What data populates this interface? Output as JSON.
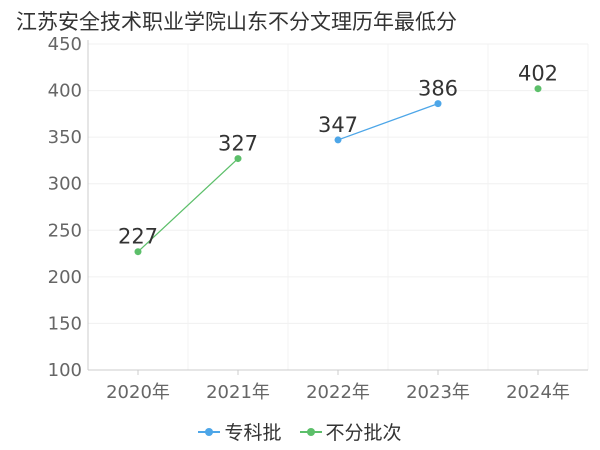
{
  "chart_data": {
    "type": "line",
    "title": "江苏安全技术职业学院山东不分文理历年最低分",
    "categories": [
      "2020年",
      "2021年",
      "2022年",
      "2023年",
      "2024年"
    ],
    "series": [
      {
        "name": "专科批",
        "color": "#4da6e8",
        "values": [
          null,
          null,
          347,
          386,
          null
        ]
      },
      {
        "name": "不分批次",
        "color": "#5cbf6a",
        "values": [
          227,
          327,
          null,
          null,
          402
        ]
      }
    ],
    "ylim": [
      100,
      450
    ],
    "yticks": [
      100,
      150,
      200,
      250,
      300,
      350,
      400,
      450
    ],
    "grid": true,
    "legend": "bottom"
  }
}
